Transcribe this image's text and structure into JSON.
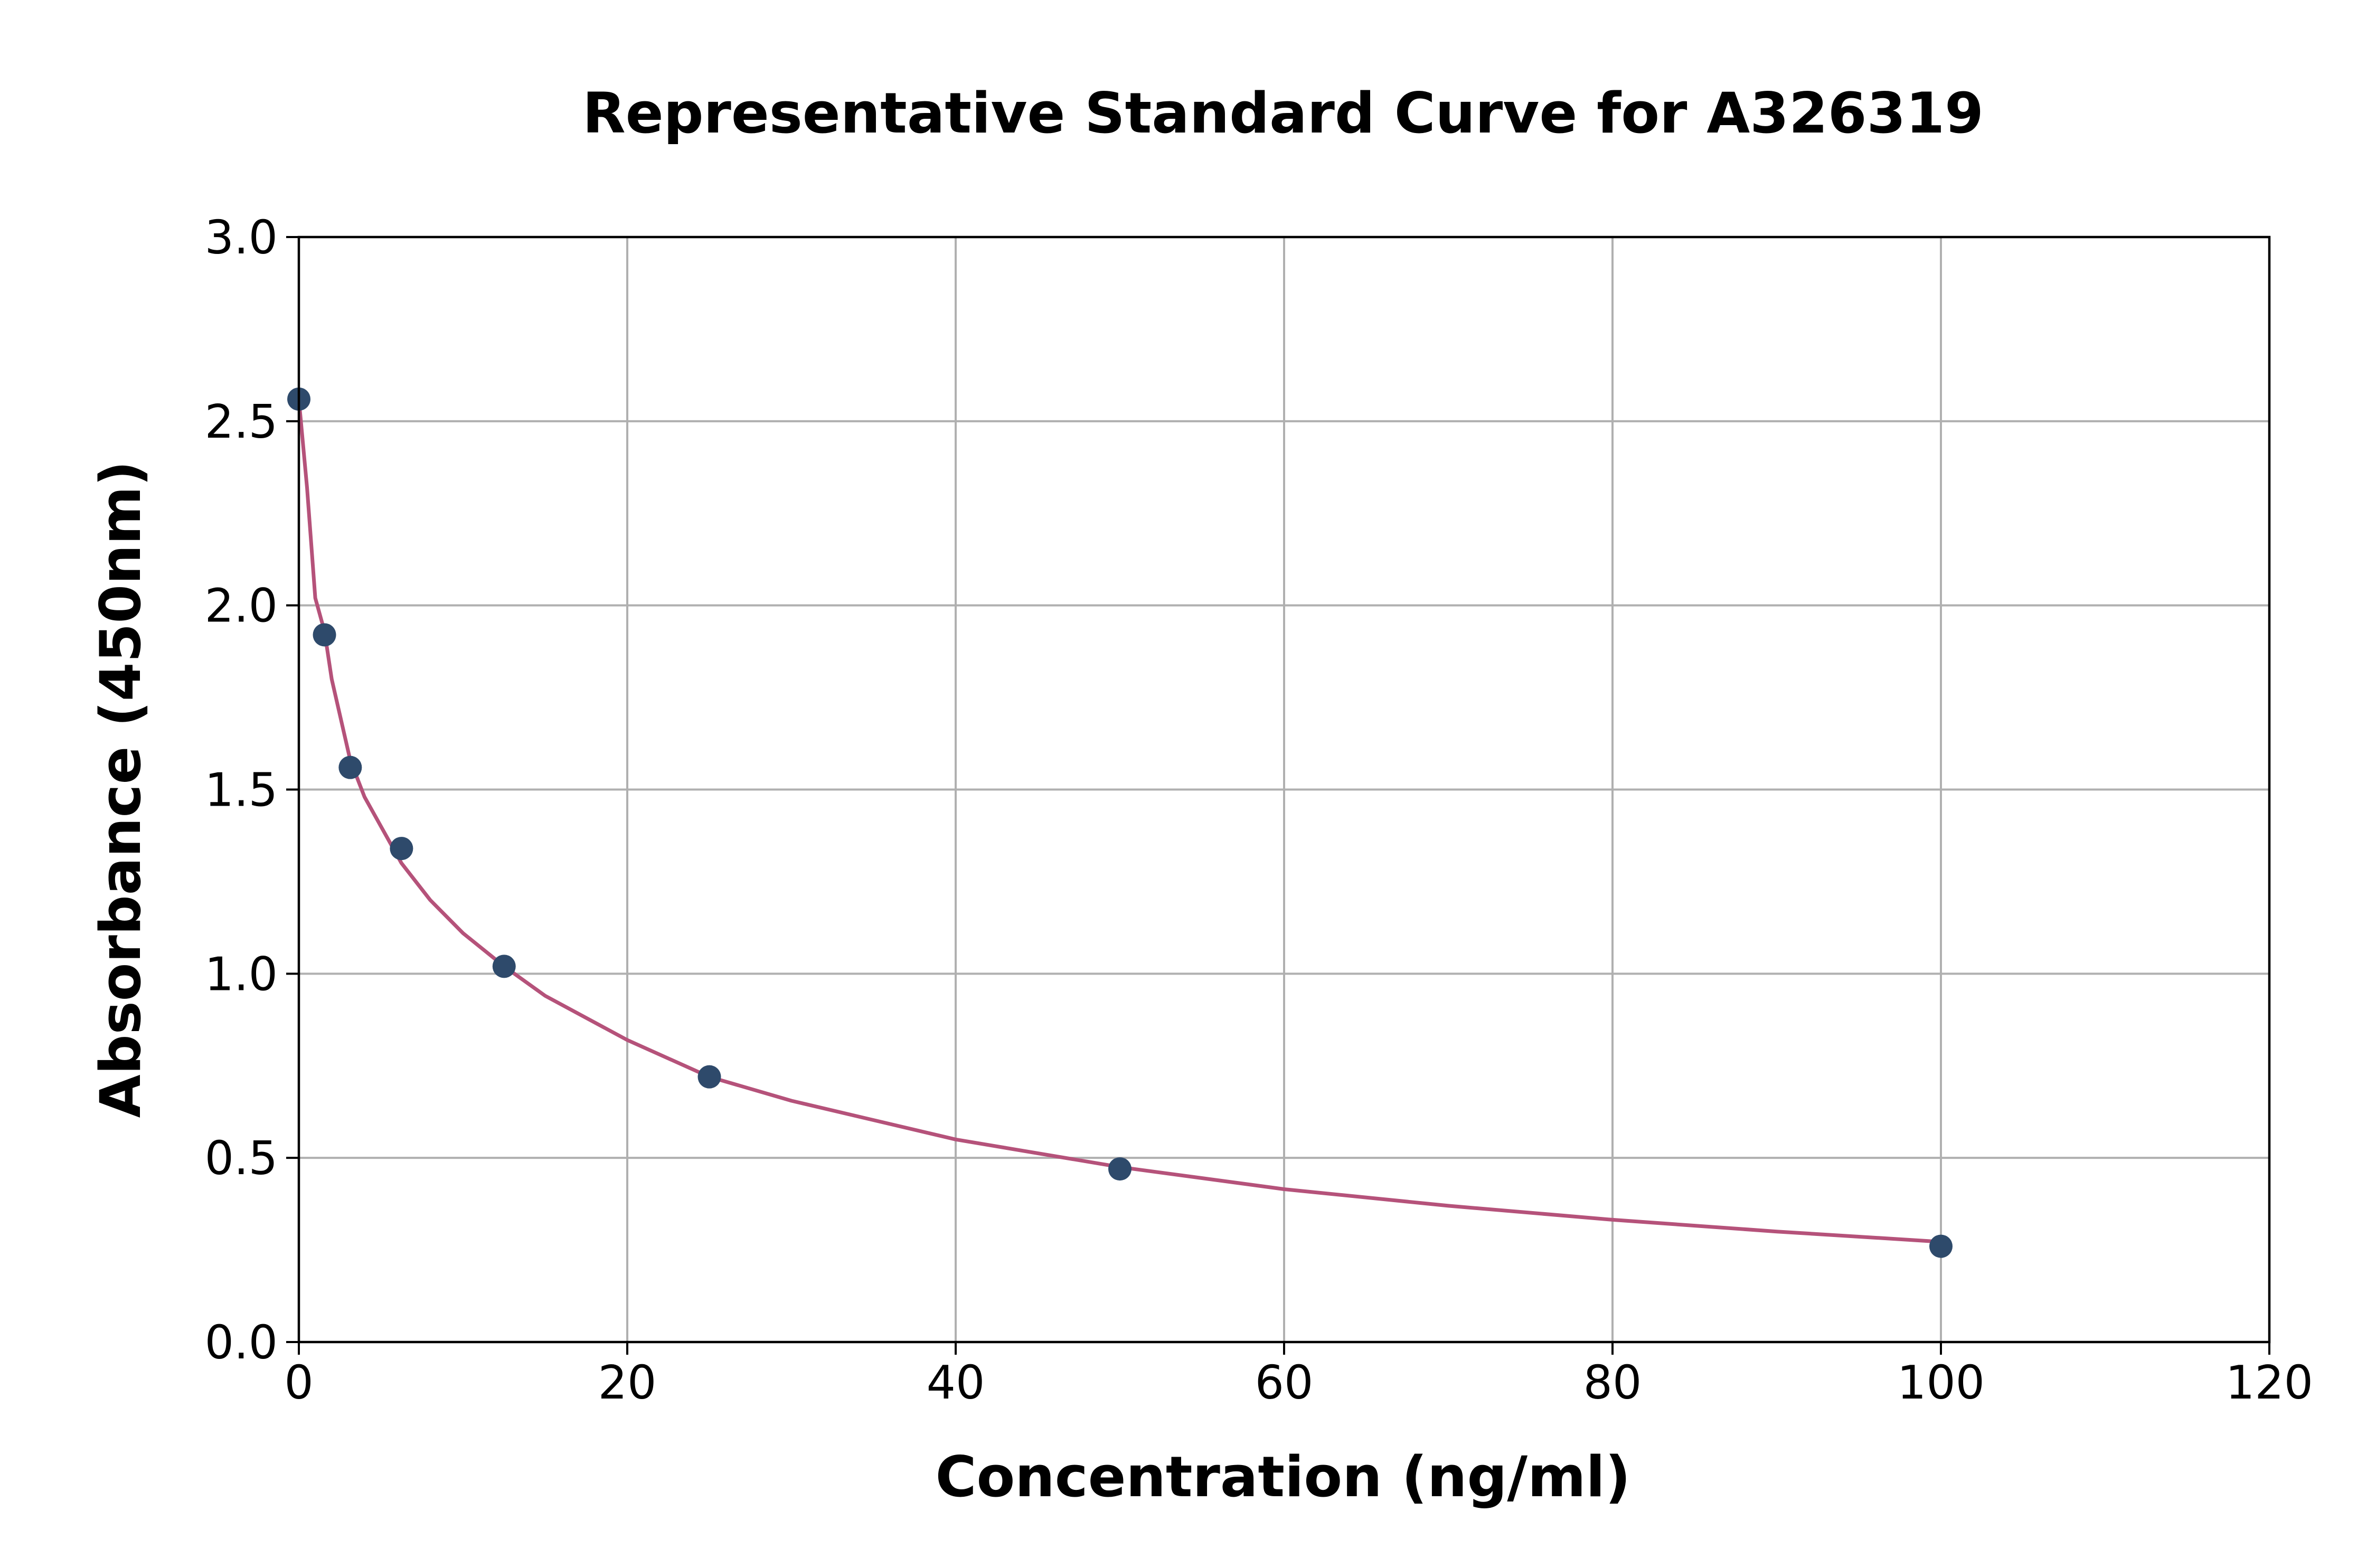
{
  "chart_data": {
    "type": "scatter",
    "title": "Representative Standard Curve for A326319",
    "xlabel": "Concentration (ng/ml)",
    "ylabel": "Absorbance (450nm)",
    "xlim": [
      0,
      120
    ],
    "ylim": [
      0,
      3.0
    ],
    "x_ticks": [
      0,
      20,
      40,
      60,
      80,
      100,
      120
    ],
    "y_ticks": [
      0.0,
      0.5,
      1.0,
      1.5,
      2.0,
      2.5,
      3.0
    ],
    "x_tick_labels": [
      "0",
      "20",
      "40",
      "60",
      "80",
      "100",
      "120"
    ],
    "y_tick_labels": [
      "0.0",
      "0.5",
      "1.0",
      "1.5",
      "2.0",
      "2.5",
      "3.0"
    ],
    "grid": true,
    "legend": "none",
    "series": [
      {
        "points": [
          {
            "x": 0,
            "y": 2.56
          },
          {
            "x": 1.56,
            "y": 1.92
          },
          {
            "x": 3.13,
            "y": 1.56
          },
          {
            "x": 6.25,
            "y": 1.34
          },
          {
            "x": 12.5,
            "y": 1.02
          },
          {
            "x": 25,
            "y": 0.72
          },
          {
            "x": 50,
            "y": 0.47
          },
          {
            "x": 100,
            "y": 0.26
          }
        ],
        "point_color": "#2e4a6b"
      }
    ],
    "fit_curve": {
      "color": "#b5527a",
      "points": [
        {
          "x": 0,
          "y": 2.56
        },
        {
          "x": 0.5,
          "y": 2.32
        },
        {
          "x": 1,
          "y": 2.02
        },
        {
          "x": 1.56,
          "y": 1.93
        },
        {
          "x": 2,
          "y": 1.8
        },
        {
          "x": 3.13,
          "y": 1.58
        },
        {
          "x": 4,
          "y": 1.48
        },
        {
          "x": 5,
          "y": 1.4
        },
        {
          "x": 6.25,
          "y": 1.3
        },
        {
          "x": 8,
          "y": 1.2
        },
        {
          "x": 10,
          "y": 1.11
        },
        {
          "x": 12.5,
          "y": 1.02
        },
        {
          "x": 15,
          "y": 0.94
        },
        {
          "x": 20,
          "y": 0.82
        },
        {
          "x": 25,
          "y": 0.72
        },
        {
          "x": 30,
          "y": 0.655
        },
        {
          "x": 40,
          "y": 0.55
        },
        {
          "x": 50,
          "y": 0.475
        },
        {
          "x": 60,
          "y": 0.415
        },
        {
          "x": 70,
          "y": 0.37
        },
        {
          "x": 80,
          "y": 0.332
        },
        {
          "x": 90,
          "y": 0.3
        },
        {
          "x": 100,
          "y": 0.272
        }
      ]
    }
  }
}
